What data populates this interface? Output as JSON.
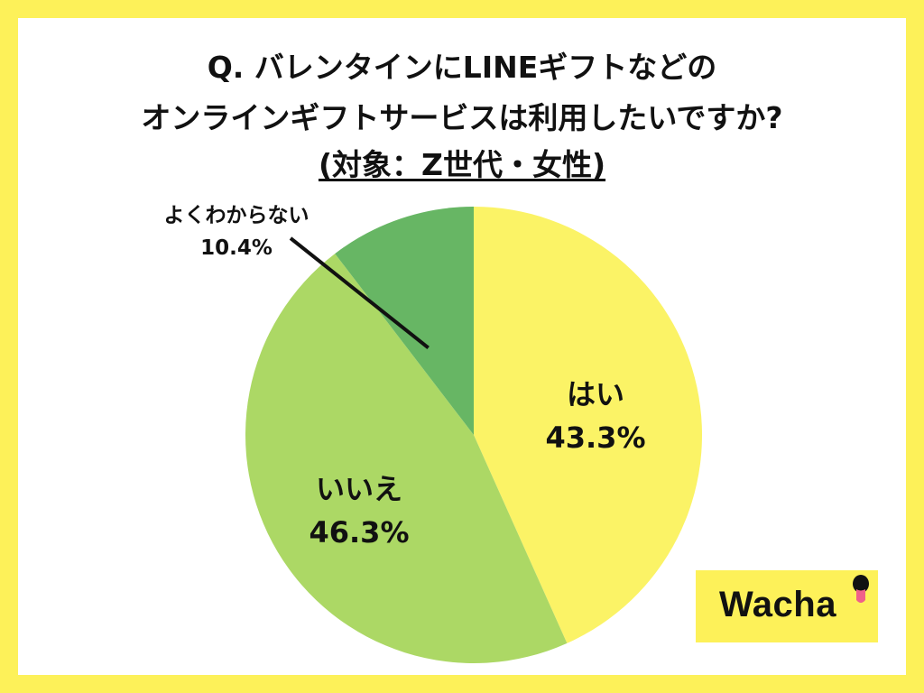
{
  "title": {
    "line1": "Q. バレンタインにLINEギフトなどの",
    "line2": "オンラインギフトサービスは利用したいですか?",
    "line3": "(対象：Z世代・女性)"
  },
  "chart_data": {
    "type": "pie",
    "title": "Q. バレンタインにLINEギフトなどのオンラインギフトサービスは利用したいですか? (対象：Z世代・女性)",
    "slices": [
      {
        "label": "はい",
        "value": 43.3,
        "display": "43.3%",
        "color": "#fbf366"
      },
      {
        "label": "いいえ",
        "value": 46.3,
        "display": "46.3%",
        "color": "#acd865"
      },
      {
        "label": "よくわからない",
        "value": 10.4,
        "display": "10.4%",
        "color": "#67b664"
      }
    ],
    "start_angle": "12 o'clock",
    "direction": "clockwise",
    "legend": "none"
  },
  "brand": {
    "name": "Wacha",
    "frame_color": "#fdf159"
  }
}
